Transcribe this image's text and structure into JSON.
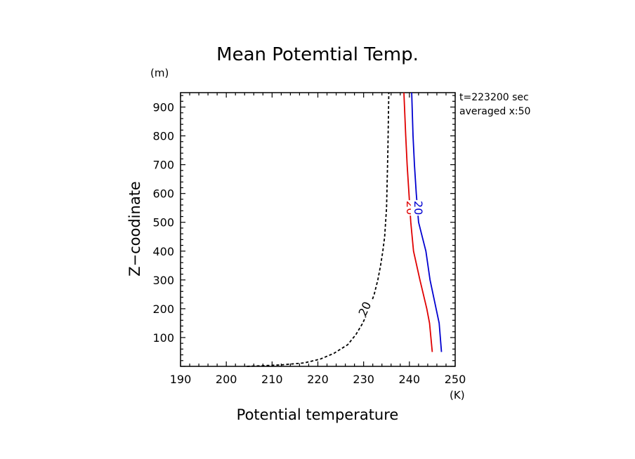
{
  "chart_data": {
    "type": "line",
    "title": "Mean Potemtial Temp.",
    "xlabel": "Potential temperature",
    "ylabel": "Z−coodinate",
    "x_unit": "(K)",
    "y_unit": "(m)",
    "xlim": [
      190,
      250
    ],
    "ylim": [
      0,
      950
    ],
    "x_ticks": [
      190,
      200,
      210,
      220,
      230,
      240,
      250
    ],
    "y_ticks": [
      100,
      200,
      300,
      400,
      500,
      600,
      700,
      800,
      900
    ],
    "info_lines": [
      "t=223200 sec",
      "averaged  x:50"
    ],
    "series": [
      {
        "color": "#000000",
        "dash": "dashed",
        "contour_label": "20",
        "x": [
          204.5,
          212,
          217,
          220.5,
          223.5,
          226.5,
          228.3,
          229.8,
          231.2,
          232.3,
          233.1,
          233.7,
          234.2,
          234.6,
          235.0,
          235.3,
          235.5
        ],
        "y": [
          0,
          5,
          12,
          25,
          45,
          75,
          110,
          150,
          200,
          250,
          300,
          350,
          400,
          450,
          550,
          750,
          950
        ]
      },
      {
        "color": "#e00000",
        "dash": "solid",
        "contour_label": "20",
        "x": [
          245.0,
          244.4,
          243.8,
          242.3,
          240.9,
          240.3,
          239.9,
          239.5,
          239.2,
          238.8
        ],
        "y": [
          50,
          150,
          200,
          300,
          400,
          500,
          600,
          700,
          800,
          950
        ]
      },
      {
        "color": "#0000d0",
        "dash": "solid",
        "contour_label": "20",
        "x": [
          247.0,
          246.5,
          244.5,
          243.6,
          242.8,
          242.0,
          241.5,
          241.1,
          240.8,
          240.5
        ],
        "y": [
          50,
          150,
          300,
          400,
          450,
          500,
          600,
          700,
          800,
          950
        ]
      }
    ]
  }
}
